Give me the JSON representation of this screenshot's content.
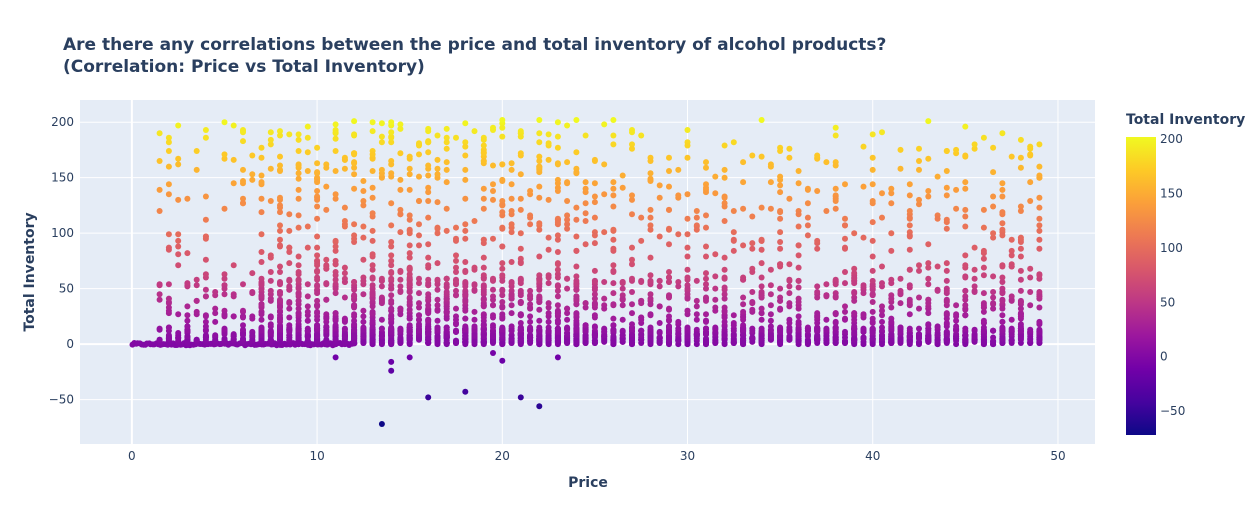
{
  "chart_data": {
    "type": "scatter",
    "title": "Are there any correlations between the price and total inventory of alcohol products?",
    "subtitle": "(Correlation: Price vs Total Inventory)",
    "xlabel": "Price",
    "ylabel": "Total Inventory",
    "xlim": [
      -2.8,
      52
    ],
    "ylim": [
      -90,
      220
    ],
    "x_ticks": [
      0,
      10,
      20,
      30,
      40,
      50
    ],
    "y_ticks": [
      -50,
      0,
      50,
      100,
      150,
      200
    ],
    "grid": true,
    "colorbar": {
      "title": "Total Inventory",
      "range": [
        -72,
        202
      ],
      "ticks": [
        -50,
        0,
        50,
        100,
        150,
        200
      ],
      "colorscale": "plasma"
    },
    "description_of_density": "Dense vertical columns of points at each price level between 0 and 49, values mostly 0 to 200",
    "outliers": [
      {
        "x": 13.5,
        "y": -72
      },
      {
        "x": 16,
        "y": -48
      },
      {
        "x": 18,
        "y": -43
      },
      {
        "x": 21,
        "y": -48
      },
      {
        "x": 22,
        "y": -56
      },
      {
        "x": 14,
        "y": -24
      },
      {
        "x": 14,
        "y": -16
      },
      {
        "x": 20,
        "y": -15
      },
      {
        "x": 11,
        "y": -12
      },
      {
        "x": 15,
        "y": -12
      },
      {
        "x": 23,
        "y": -12
      },
      {
        "x": 19.5,
        "y": -8
      }
    ],
    "sample_points": [
      {
        "x": 1.5,
        "y": 120
      },
      {
        "x": 2,
        "y": 182
      },
      {
        "x": 2,
        "y": 174
      },
      {
        "x": 2.5,
        "y": 197
      },
      {
        "x": 2.5,
        "y": 162
      },
      {
        "x": 5.5,
        "y": 197
      },
      {
        "x": 6,
        "y": 192
      },
      {
        "x": 12,
        "y": 201
      },
      {
        "x": 13,
        "y": 200
      },
      {
        "x": 20,
        "y": 202
      },
      {
        "x": 22,
        "y": 202
      },
      {
        "x": 24,
        "y": 202
      },
      {
        "x": 26,
        "y": 202
      },
      {
        "x": 34,
        "y": 202
      },
      {
        "x": 43,
        "y": 201
      },
      {
        "x": 45,
        "y": 196
      },
      {
        "x": 47,
        "y": 190
      },
      {
        "x": 49,
        "y": 180
      },
      {
        "x": 49,
        "y": 150
      }
    ]
  }
}
